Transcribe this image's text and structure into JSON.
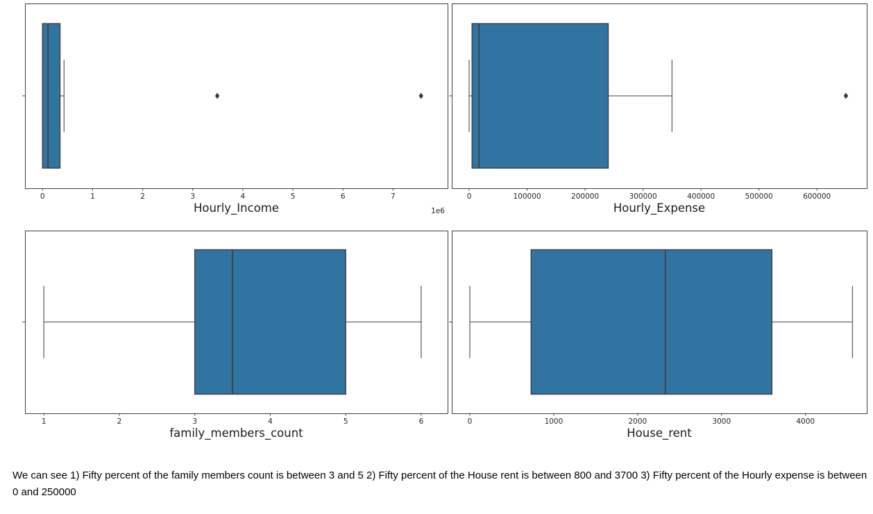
{
  "figure": {
    "background": "#ffffff",
    "box_fill": "#3274a1",
    "box_edge": "#3d3d3d",
    "median_color": "#3d3d3d",
    "whisker_color": "#646464",
    "spine_color": "#3f3f3f",
    "tick_label_color": "#262626",
    "axis_label_color": "#1c1c1c",
    "outlier_color": "#3a3a3a"
  },
  "chart_data": [
    {
      "type": "box",
      "orientation": "horizontal",
      "xlabel": "Hourly_Income",
      "xlim": [
        -350000,
        8090000
      ],
      "tick_values": [
        0,
        1000000,
        2000000,
        3000000,
        4000000,
        5000000,
        6000000,
        7000000
      ],
      "tick_labels": [
        "0",
        "1",
        "2",
        "3",
        "4",
        "5",
        "6",
        "7"
      ],
      "offset_label": "1e6",
      "stats": {
        "whisker_low": 0,
        "q1": 0,
        "median": 110000,
        "q3": 350000,
        "whisker_high": 430000,
        "outliers": [
          3490000,
          7560000
        ]
      }
    },
    {
      "type": "box",
      "orientation": "horizontal",
      "xlabel": "Hourly_Expense",
      "xlim": [
        -30000,
        686000
      ],
      "tick_values": [
        0,
        100000,
        200000,
        300000,
        400000,
        500000,
        600000
      ],
      "tick_labels": [
        "0",
        "100000",
        "200000",
        "300000",
        "400000",
        "500000",
        "600000"
      ],
      "offset_label": "",
      "stats": {
        "whisker_low": 0,
        "q1": 5000,
        "median": 17000,
        "q3": 240000,
        "whisker_high": 350000,
        "outliers": [
          650000
        ]
      }
    },
    {
      "type": "box",
      "orientation": "horizontal",
      "xlabel": "family_members_count",
      "xlim": [
        0.75,
        6.35
      ],
      "tick_values": [
        1,
        2,
        3,
        4,
        5,
        6
      ],
      "tick_labels": [
        "1",
        "2",
        "3",
        "4",
        "5",
        "6"
      ],
      "offset_label": "",
      "stats": {
        "whisker_low": 1,
        "q1": 3,
        "median": 3.5,
        "q3": 5,
        "whisker_high": 6,
        "outliers": []
      }
    },
    {
      "type": "box",
      "orientation": "horizontal",
      "xlabel": "House_rent",
      "xlim": [
        -215,
        4730
      ],
      "tick_values": [
        0,
        1000,
        2000,
        3000,
        4000
      ],
      "tick_labels": [
        "0",
        "1000",
        "2000",
        "3000",
        "4000"
      ],
      "offset_label": "",
      "stats": {
        "whisker_low": 0,
        "q1": 730,
        "median": 2330,
        "q3": 3600,
        "whisker_high": 4560,
        "outliers": []
      }
    }
  ],
  "caption": "We can see 1) Fifty percent of the family members count is between 3 and 5 2) Fifty percent of the House rent is between 800 and 3700 3) Fifty percent of the Hourly expense is between 0 and 250000"
}
